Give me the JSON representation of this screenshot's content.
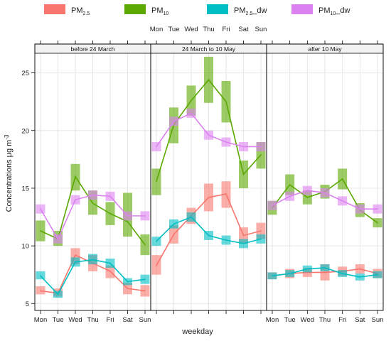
{
  "chart_data": {
    "type": "line",
    "xlabel": "weekday",
    "ylabel": "Concentrations μg m",
    "ylabel_exp": "-3",
    "ylim": [
      4.4,
      27.5
    ],
    "yticks": [
      5,
      10,
      15,
      20,
      25
    ],
    "categories": [
      "Mon",
      "Tue",
      "Wed",
      "Thu",
      "Fri",
      "Sat",
      "Sun"
    ],
    "grid": true,
    "legend_position": "top",
    "legend": [
      {
        "key": "pm25",
        "base": "PM",
        "sub": "2.5",
        "suffix": ""
      },
      {
        "key": "pm10",
        "base": "PM",
        "sub": "10",
        "suffix": ""
      },
      {
        "key": "pm25dw",
        "base": "PM",
        "sub": "2.5",
        "suffix": "_dw"
      },
      {
        "key": "pm10dw",
        "base": "PM",
        "sub": "10",
        "suffix": "_dw"
      }
    ],
    "colors": {
      "pm25": "#f8766d",
      "pm10": "#5aa800",
      "pm25dw": "#00bfc4",
      "pm10dw": "#dc82f0"
    },
    "panels": [
      {
        "title": "before 24 March",
        "series": {
          "pm25": {
            "mean": [
              6.1,
              5.9,
              9.2,
              8.5,
              7.8,
              6.3,
              6.1
            ],
            "low": [
              5.8,
              5.6,
              8.4,
              7.8,
              7.2,
              5.8,
              5.6
            ],
            "high": [
              6.5,
              6.3,
              9.8,
              9.2,
              8.3,
              6.8,
              6.6
            ]
          },
          "pm10": {
            "mean": [
              11.3,
              10.6,
              16.0,
              13.7,
              12.8,
              12.1,
              10.1
            ],
            "low": [
              10.4,
              10.0,
              14.8,
              12.7,
              11.8,
              10.8,
              9.2
            ],
            "high": [
              12.2,
              11.3,
              17.1,
              14.8,
              13.8,
              14.6,
              11.0
            ]
          },
          "pm25dw": {
            "mean": [
              7.4,
              5.8,
              8.6,
              8.8,
              8.5,
              6.9,
              7.1
            ],
            "low": [
              7.1,
              5.5,
              8.2,
              8.4,
              8.1,
              6.6,
              6.7
            ],
            "high": [
              7.8,
              6.1,
              9.0,
              9.3,
              8.9,
              7.2,
              7.5
            ]
          },
          "pm10dw": {
            "mean": [
              13.2,
              10.6,
              14.0,
              14.4,
              14.3,
              12.6,
              12.6
            ],
            "low": [
              12.8,
              10.2,
              13.6,
              14.0,
              13.9,
              12.2,
              12.2
            ],
            "high": [
              13.6,
              11.0,
              14.4,
              14.8,
              14.7,
              13.0,
              13.0
            ]
          }
        }
      },
      {
        "title": "24 March to 10 May",
        "series": {
          "pm25": {
            "mean": [
              8.3,
              11.0,
              12.6,
              14.2,
              14.5,
              10.9,
              11.3
            ],
            "low": [
              7.5,
              10.2,
              11.9,
              13.0,
              13.3,
              10.2,
              10.6
            ],
            "high": [
              9.2,
              11.8,
              13.3,
              15.4,
              15.6,
              11.6,
              12.0
            ]
          },
          "pm10": {
            "mean": [
              15.6,
              20.5,
              22.6,
              24.4,
              22.5,
              16.2,
              17.9
            ],
            "low": [
              14.4,
              18.9,
              21.3,
              22.4,
              20.7,
              15.0,
              16.7
            ],
            "high": [
              16.7,
              22.0,
              23.9,
              26.4,
              24.3,
              17.4,
              19.0
            ]
          },
          "pm10dw": {
            "mean": [
              18.6,
              20.8,
              21.5,
              19.6,
              19.0,
              18.6,
              18.6
            ],
            "low": [
              18.2,
              20.4,
              21.1,
              19.2,
              18.6,
              18.2,
              18.2
            ],
            "high": [
              19.0,
              21.2,
              21.9,
              20.0,
              19.4,
              19.0,
              19.0
            ]
          },
          "pm25dw": {
            "mean": [
              10.4,
              11.9,
              12.5,
              10.9,
              10.5,
              10.2,
              10.6
            ],
            "low": [
              10.0,
              11.5,
              12.1,
              10.5,
              10.1,
              9.8,
              10.2
            ],
            "high": [
              10.8,
              12.3,
              12.9,
              11.3,
              10.9,
              10.6,
              11.0
            ]
          }
        }
      },
      {
        "title": "after 10 May",
        "series": {
          "pm25": {
            "mean": [
              7.4,
              7.6,
              7.7,
              7.7,
              7.8,
              8.0,
              7.6
            ],
            "low": [
              7.1,
              7.2,
              7.3,
              7.0,
              7.4,
              7.6,
              7.2
            ],
            "high": [
              7.7,
              8.0,
              8.1,
              8.4,
              8.2,
              8.4,
              8.0
            ]
          },
          "pm10": {
            "mean": [
              13.3,
              15.3,
              14.2,
              14.7,
              15.8,
              13.1,
              12.0
            ],
            "low": [
              12.7,
              14.4,
              13.6,
              14.1,
              14.9,
              12.5,
              11.6
            ],
            "high": [
              13.9,
              16.2,
              14.8,
              15.3,
              16.7,
              13.7,
              12.4
            ]
          },
          "pm10dw": {
            "mean": [
              13.5,
              14.3,
              14.8,
              14.6,
              13.9,
              13.2,
              13.2
            ],
            "low": [
              13.1,
              13.9,
              14.4,
              14.2,
              13.5,
              12.8,
              12.8
            ],
            "high": [
              13.9,
              14.7,
              15.2,
              15.0,
              14.3,
              13.6,
              13.6
            ]
          },
          "pm25dw": {
            "mean": [
              7.4,
              7.6,
              8.0,
              8.1,
              7.6,
              7.3,
              7.5
            ],
            "low": [
              7.1,
              7.3,
              7.7,
              7.8,
              7.3,
              7.0,
              7.2
            ],
            "high": [
              7.7,
              7.9,
              8.3,
              8.4,
              7.9,
              7.6,
              7.8
            ]
          }
        }
      }
    ]
  }
}
